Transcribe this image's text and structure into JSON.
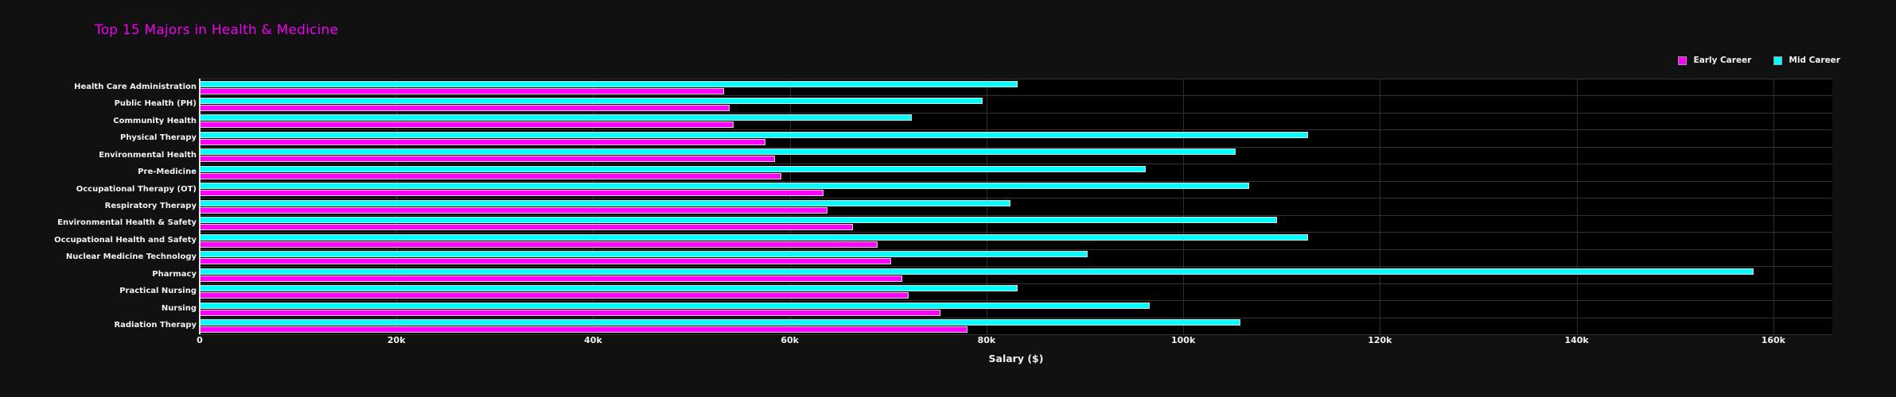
{
  "title": {
    "text": "Top 15 Majors in Health & Medicine",
    "color": "#ee00ee"
  },
  "colors": {
    "paper_background": "#111111",
    "plot_background": "#000000",
    "early_career": "#ff00ff",
    "mid_career": "#00ffff",
    "axis_text": "#f2f2f2"
  },
  "chart_data": {
    "type": "bar",
    "orientation": "horizontal",
    "title": "Top 15 Majors in Health & Medicine",
    "xlabel": "Salary ($)",
    "ylabel": "",
    "xlim": [
      0,
      166000
    ],
    "grid": true,
    "legend_position": "top-right",
    "xticks": [
      {
        "value": 0,
        "label": "0"
      },
      {
        "value": 20000,
        "label": "20k"
      },
      {
        "value": 40000,
        "label": "40k"
      },
      {
        "value": 60000,
        "label": "60k"
      },
      {
        "value": 80000,
        "label": "80k"
      },
      {
        "value": 100000,
        "label": "100k"
      },
      {
        "value": 120000,
        "label": "120k"
      },
      {
        "value": 140000,
        "label": "140k"
      },
      {
        "value": 160000,
        "label": "160k"
      }
    ],
    "categories": [
      "Health Care Administration",
      "Public Health (PH)",
      "Community Health",
      "Physical Therapy",
      "Environmental Health",
      "Pre-Medicine",
      "Occupational Therapy (OT)",
      "Respiratory Therapy",
      "Environmental Health & Safety",
      "Occupational Health and Safety",
      "Nuclear Medicine Technology",
      "Pharmacy",
      "Practical Nursing",
      "Nursing",
      "Radiation Therapy"
    ],
    "series": [
      {
        "name": "Early Career",
        "color": "#ff00ff",
        "values": [
          53300,
          53900,
          54300,
          57500,
          58500,
          59100,
          63400,
          63800,
          66400,
          68900,
          70300,
          71400,
          72100,
          75300,
          78100
        ]
      },
      {
        "name": "Mid Career",
        "color": "#00ffff",
        "values": [
          83200,
          79600,
          72400,
          112700,
          105300,
          96200,
          106700,
          82400,
          109500,
          112700,
          90300,
          158000,
          83200,
          96600,
          105800
        ]
      }
    ]
  }
}
